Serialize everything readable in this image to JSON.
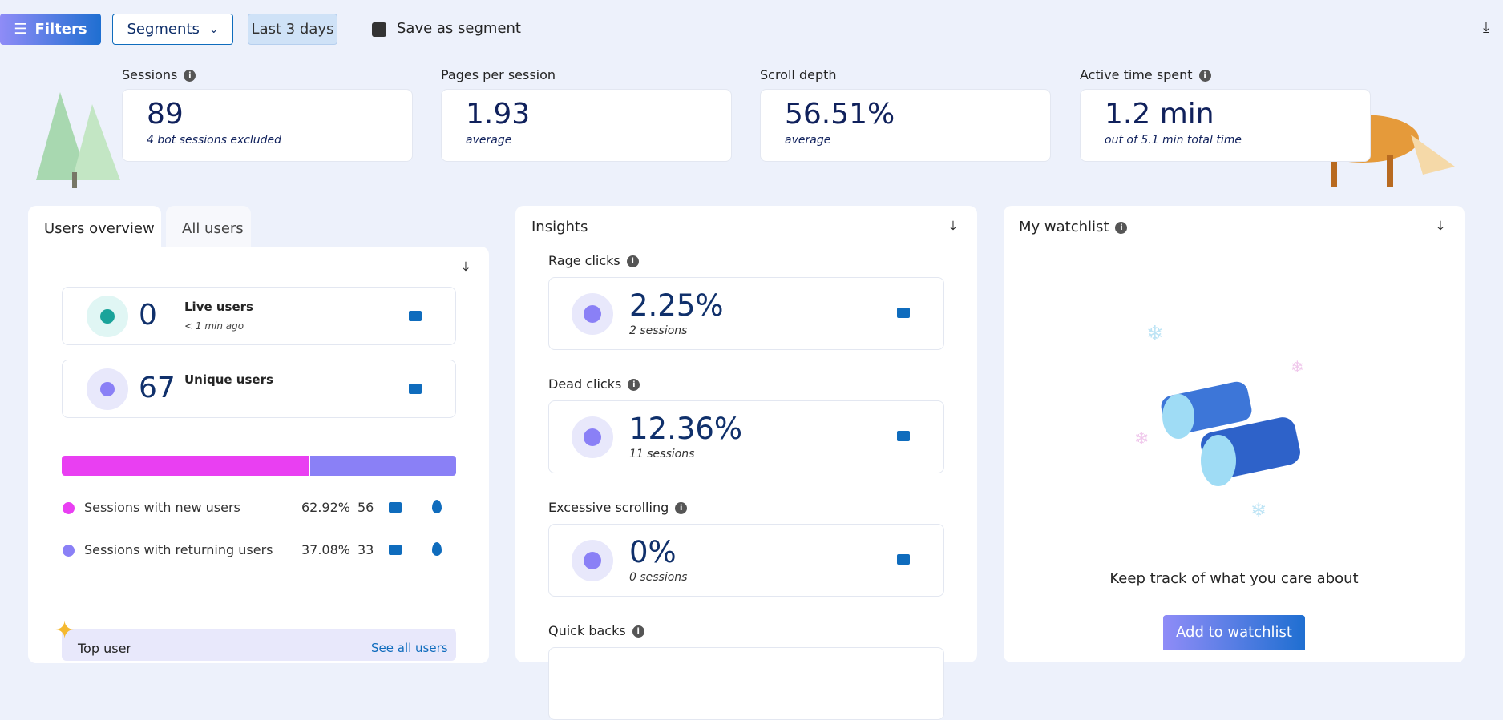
{
  "toolbar": {
    "filters": "Filters",
    "segments": "Segments",
    "date_range": "Last 3 days",
    "save": "Save as segment"
  },
  "metrics": [
    {
      "label": "Sessions",
      "value": "89",
      "note": "4 bot sessions excluded"
    },
    {
      "label": "Pages per session",
      "value": "1.93",
      "note": "average"
    },
    {
      "label": "Scroll depth",
      "value": "56.51%",
      "note": "average"
    },
    {
      "label": "Active time spent",
      "value": "1.2 min",
      "note": "out of 5.1 min total time"
    }
  ],
  "users_panel": {
    "tabs": [
      "Users overview",
      "All users"
    ],
    "live": {
      "value": "0",
      "label": "Live users",
      "note": "< 1 min ago"
    },
    "unique": {
      "value": "67",
      "label": "Unique users"
    },
    "split": [
      {
        "label": "Sessions with new users",
        "share": 62.92,
        "share_label": "62.92%",
        "count": "56",
        "color": "#e93ff2"
      },
      {
        "label": "Sessions with returning users",
        "share": 37.08,
        "share_label": "37.08%",
        "count": "33",
        "color": "#8a80f6"
      }
    ],
    "top_user": "Top user",
    "see_all": "See all users"
  },
  "insights": {
    "title": "Insights",
    "items": [
      {
        "label": "Rage clicks",
        "value": "2.25%",
        "note": "2 sessions"
      },
      {
        "label": "Dead clicks",
        "value": "12.36%",
        "note": "11 sessions"
      },
      {
        "label": "Excessive scrolling",
        "value": "0%",
        "note": "0 sessions"
      },
      {
        "label": "Quick backs"
      }
    ]
  },
  "watchlist": {
    "title": "My watchlist",
    "message": "Keep track of what you care about",
    "button": "Add to watchlist"
  }
}
